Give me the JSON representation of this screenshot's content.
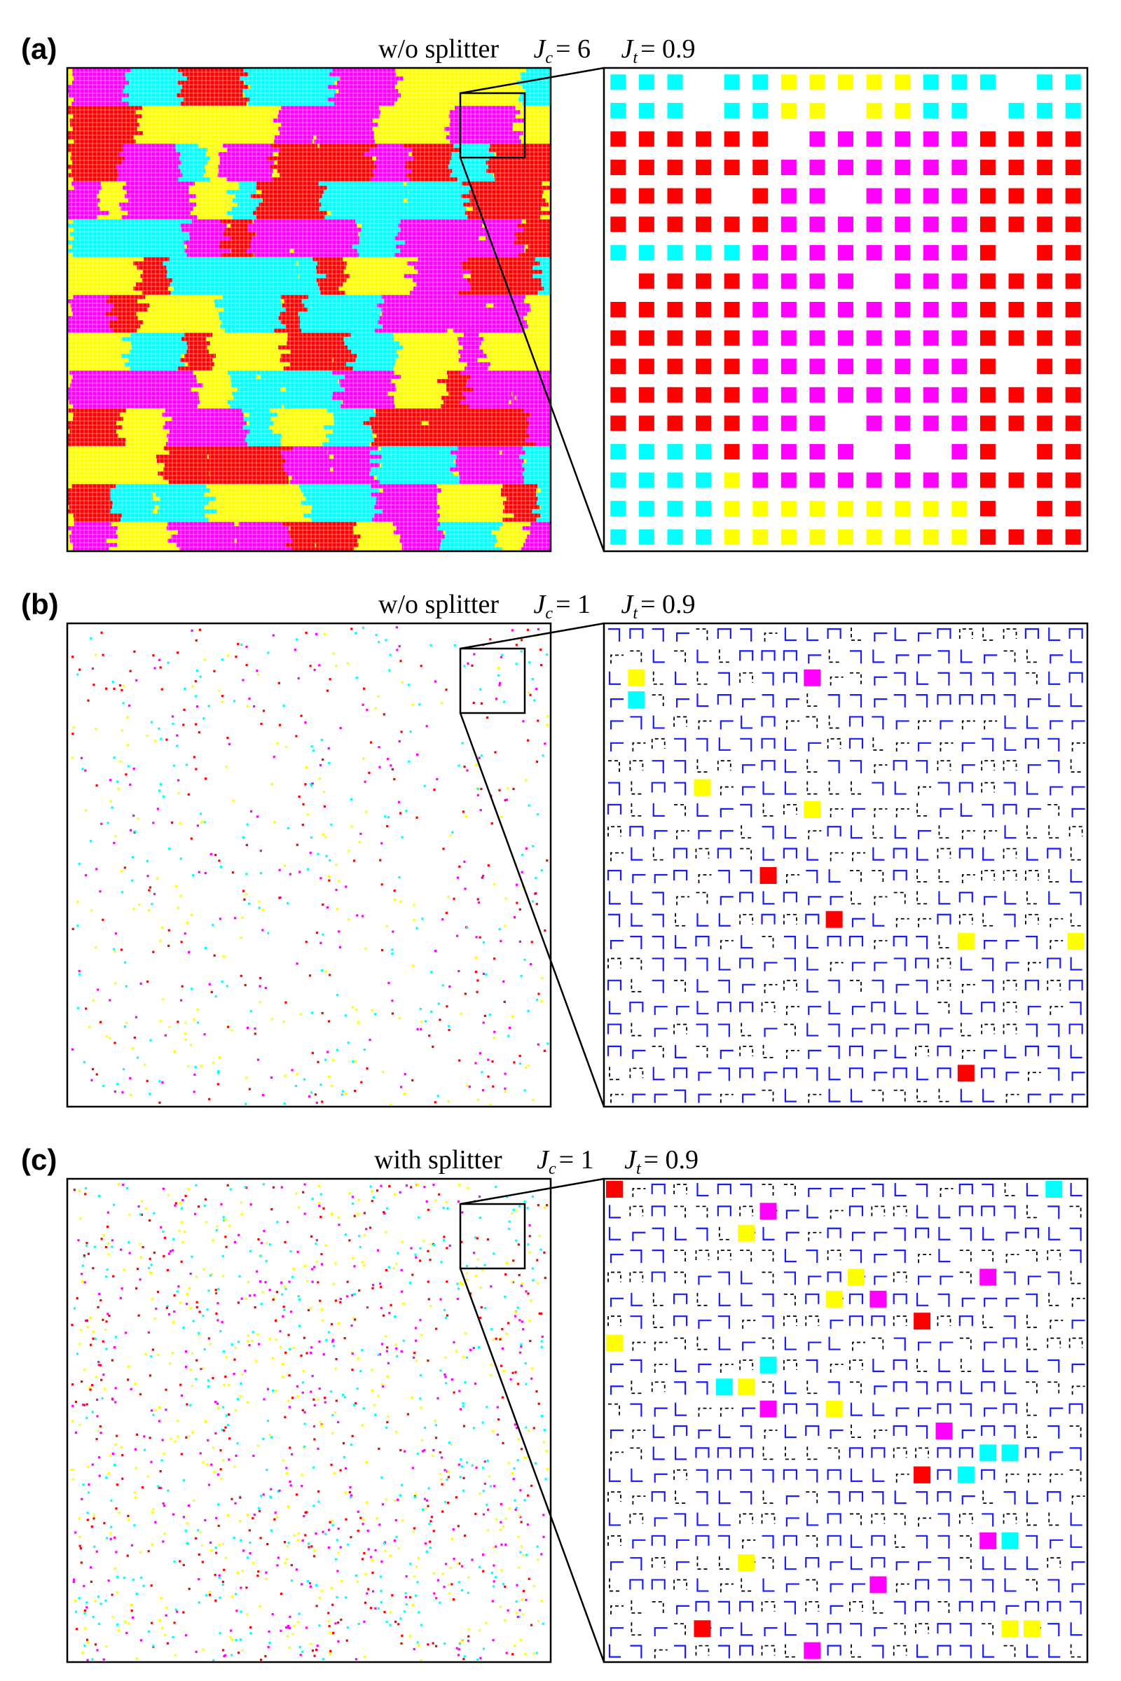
{
  "palette": {
    "yellow": "#ffff00",
    "magenta": "#ff00ff",
    "red": "#ff0000",
    "cyan": "#00ffff",
    "blue_trail": "#1a1aff",
    "black_trail": "#000000",
    "frame": "#000000"
  },
  "panels": [
    {
      "id": "a",
      "label": "(a)",
      "title": "w/o splitter",
      "jc_symbol": "J",
      "jc_sub": "c",
      "jc_value": "= 6",
      "jt_symbol": "J",
      "jt_sub": "t",
      "jt_value": "= 0.9",
      "lattice_state": "ordered domains (yellow, magenta, red, cyan)",
      "zoom_state": "dense colored domains"
    },
    {
      "id": "b",
      "label": "(b)",
      "title": "w/o splitter",
      "jc_symbol": "J",
      "jc_sub": "c",
      "jc_value": "= 1",
      "jt_symbol": "J",
      "jt_sub": "t",
      "jt_value": "= 0.9",
      "lattice_state": "sparse scattered colored sites",
      "zoom_state": "blue/black trail network with few colored squares"
    },
    {
      "id": "c",
      "label": "(c)",
      "title": "with splitter",
      "jc_symbol": "J",
      "jc_sub": "c",
      "jc_value": "= 1",
      "jt_symbol": "J",
      "jt_sub": "t",
      "jt_value": "= 0.9",
      "lattice_state": "denser scattered colored sites",
      "zoom_state": "blue/black trail network with more colored squares"
    }
  ]
}
